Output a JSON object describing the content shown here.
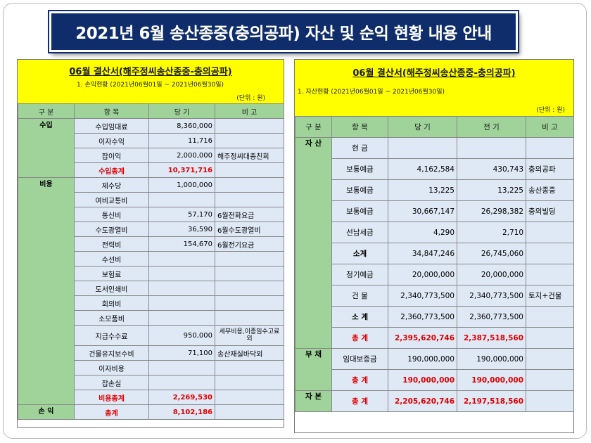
{
  "title": "2021년 6월 송산종중(충의공파) 자산 및 순익 현황 내용 안내",
  "left": {
    "heading": "06월 결산서(해주정씨송산종중-충의공파)",
    "subheading": "1. 손익현황 (2021년06월01일 ~ 2021년06월30일)",
    "unit": "(단위 : 원)",
    "headers": [
      "구  분",
      "항    목",
      "당    기",
      "비    고"
    ],
    "income_label": "수입",
    "income_rows": [
      {
        "item": "수입임대료",
        "value": "8,360,000",
        "note": ""
      },
      {
        "item": "이자수익",
        "value": "11,716",
        "note": ""
      },
      {
        "item": "잡이익",
        "value": "2,000,000",
        "note": "해주정씨대종친회"
      },
      {
        "item": "수입총계",
        "value": "10,371,716",
        "note": ""
      }
    ],
    "expense_label": "비용",
    "expense_rows": [
      {
        "item": "제수당",
        "value": "1,000,000",
        "note": ""
      },
      {
        "item": "여비교통비",
        "value": "",
        "note": ""
      },
      {
        "item": "통신비",
        "value": "57,170",
        "note": "6월전화요금"
      },
      {
        "item": "수도광열비",
        "value": "36,590",
        "note": "6월수도광열비"
      },
      {
        "item": "전력비",
        "value": "154,670",
        "note": "6월전기요금"
      },
      {
        "item": "수선비",
        "value": "",
        "note": ""
      },
      {
        "item": "보험료",
        "value": "",
        "note": ""
      },
      {
        "item": "도서인쇄비",
        "value": "",
        "note": ""
      },
      {
        "item": "회의비",
        "value": "",
        "note": ""
      },
      {
        "item": "소모품비",
        "value": "",
        "note": ""
      },
      {
        "item": "지급수수료",
        "value": "950,000",
        "note": "세무비용,이종임수고료외"
      },
      {
        "item": "건물유지보수비",
        "value": "71,100",
        "note": "송산재실바닥외"
      },
      {
        "item": "이자비용",
        "value": "",
        "note": ""
      },
      {
        "item": "잡손실",
        "value": "",
        "note": ""
      },
      {
        "item": "비용총계",
        "value": "2,269,530",
        "note": ""
      }
    ],
    "profit_label": "손    익",
    "profit_row": {
      "item": "총계",
      "value": "8,102,186",
      "note": ""
    }
  },
  "right": {
    "heading": "06월 결산서(해주정씨송산종중-충의공파)",
    "subheading": "1. 자산현황 (2021년06월01일 ~ 2021년06월30일)",
    "unit": "(단위 : 원)",
    "headers": [
      "구  분",
      "항    목",
      "당    기",
      "전    기",
      "비    고"
    ],
    "asset_label": "자    산",
    "asset_rows": [
      {
        "item": "현    금",
        "cur": "",
        "prev": "",
        "note": ""
      },
      {
        "item": "보통예금",
        "cur": "4,162,584",
        "prev": "430,743",
        "note": "충의공파"
      },
      {
        "item": "보통예금",
        "cur": "13,225",
        "prev": "13,225",
        "note": "송산종중"
      },
      {
        "item": "보통예금",
        "cur": "30,667,147",
        "prev": "26,298,382",
        "note": "충의빌딩"
      },
      {
        "item": "선납세금",
        "cur": "4,290",
        "prev": "2,710",
        "note": ""
      },
      {
        "item": "소계",
        "cur": "34,847,246",
        "prev": "26,745,060",
        "note": ""
      },
      {
        "item": "정기예금",
        "cur": "20,000,000",
        "prev": "20,000,000",
        "note": ""
      },
      {
        "item": "건    물",
        "cur": "2,340,773,500",
        "prev": "2,340,773,500",
        "note": "토지+건물"
      },
      {
        "item": "소    계",
        "cur": "2,360,773,500",
        "prev": "2,360,773,500",
        "note": ""
      },
      {
        "item": "총    계",
        "cur": "2,395,620,746",
        "prev": "2,387,518,560",
        "note": ""
      }
    ],
    "liab_label": "부    채",
    "liab_rows": [
      {
        "item": "임대보증금",
        "cur": "190,000,000",
        "prev": "190,000,000",
        "note": ""
      },
      {
        "item": "총    계",
        "cur": "190,000,000",
        "prev": "190,000,000",
        "note": ""
      }
    ],
    "equity_label": "자    본",
    "equity_row": {
      "item": "총    계",
      "cur": "2,205,620,746",
      "prev": "2,197,518,560",
      "note": ""
    }
  }
}
